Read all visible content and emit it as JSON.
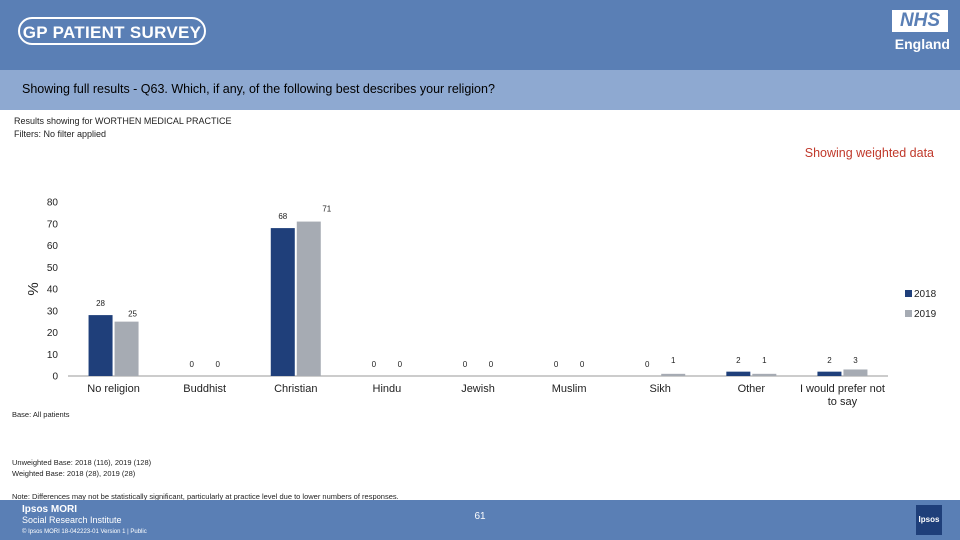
{
  "header": {
    "survey_logo_text": "GP PATIENT SURVEY",
    "nhs_logo_text": "NHS",
    "nhs_region": "England",
    "question": "Showing full results - Q63.  Which, if any, of the following best describes your religion?"
  },
  "meta": {
    "results_for": "Results showing for WORTHEN MEDICAL PRACTICE",
    "filters": "Filters: No filter applied",
    "weighted_label": "Showing weighted data"
  },
  "chart_data": {
    "type": "bar",
    "ylabel": "%",
    "ylim": [
      0,
      80
    ],
    "yticks": [
      0,
      10,
      20,
      30,
      40,
      50,
      60,
      70,
      80
    ],
    "categories": [
      "No religion",
      "Buddhist",
      "Christian",
      "Hindu",
      "Jewish",
      "Muslim",
      "Sikh",
      "Other",
      "I would prefer not to say"
    ],
    "series": [
      {
        "name": "2018",
        "color": "#1f3f7a",
        "values": [
          28,
          0,
          68,
          0,
          0,
          0,
          0,
          2,
          2
        ]
      },
      {
        "name": "2019",
        "color": "#a6abb3",
        "values": [
          25,
          0,
          71,
          0,
          0,
          0,
          1,
          1,
          3
        ]
      }
    ],
    "legend_position": "right"
  },
  "notes": {
    "base": "Base: All patients",
    "unweighted": "Unweighted Base: 2018 (116), 2019 (128)",
    "weighted": "Weighted Base: 2018 (28), 2019 (28)",
    "disclaimer": "Note: Differences may not be statistically significant, particularly at practice level due to lower numbers of responses."
  },
  "footer": {
    "ipsos": "Ipsos MORI",
    "sri": "Social Research Institute",
    "copyright": "© Ipsos MORI       18-042223-01 Version 1 | Public",
    "page_number": "61",
    "ipsos_logo": "Ipsos"
  }
}
